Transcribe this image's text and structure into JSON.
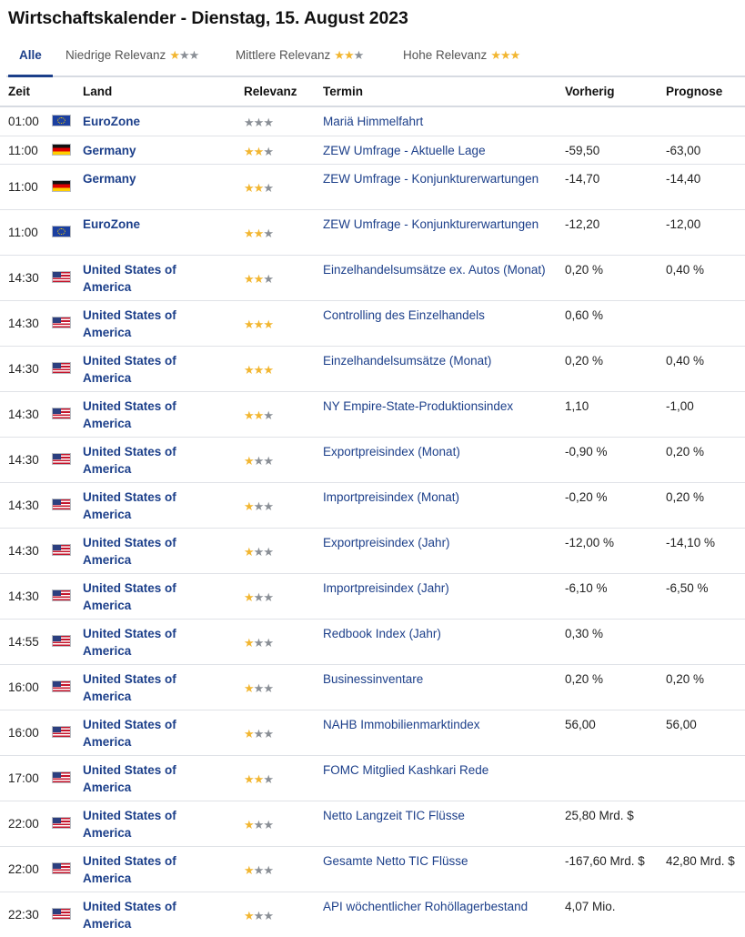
{
  "page": {
    "title": "Wirtschaftskalender - Dienstag, 15. August 2023"
  },
  "tabs": [
    {
      "label": "Alle",
      "active": true
    },
    {
      "label": "Niedrige Relevanz",
      "stars": 1
    },
    {
      "label": "Mittlere Relevanz",
      "stars": 2
    },
    {
      "label": "Hohe Relevanz",
      "stars": 3
    }
  ],
  "columns": {
    "time": "Zeit",
    "country": "Land",
    "relevance": "Relevanz",
    "event": "Termin",
    "previous": "Vorherig",
    "forecast": "Prognose"
  },
  "colors": {
    "accent": "#1c3f8a",
    "star_active": "#f2b631",
    "star_inactive": "#8a8f96"
  },
  "rows": [
    {
      "time": "01:00",
      "flag": "eu-flag-icon",
      "country": "EuroZone",
      "relevance": 0,
      "event": "Mariä Himmelfahrt",
      "previous": "",
      "forecast": ""
    },
    {
      "time": "11:00",
      "flag": "de-flag-icon",
      "country": "Germany",
      "relevance": 2,
      "event": "ZEW Umfrage - Aktuelle Lage",
      "previous": "-59,50",
      "forecast": "-63,00"
    },
    {
      "time": "11:00",
      "flag": "de-flag-icon",
      "country": "Germany",
      "relevance": 2,
      "event": "ZEW Umfrage - Konjunkturerwartungen",
      "previous": "-14,70",
      "forecast": "-14,40"
    },
    {
      "time": "11:00",
      "flag": "eu-flag-icon",
      "country": "EuroZone",
      "relevance": 2,
      "event": "ZEW Umfrage - Konjunkturerwartungen",
      "previous": "-12,20",
      "forecast": "-12,00"
    },
    {
      "time": "14:30",
      "flag": "us-flag-icon",
      "country": "United States of America",
      "relevance": 2,
      "event": "Einzelhandelsumsätze ex. Autos (Monat)",
      "previous": "0,20 %",
      "forecast": "0,40 %"
    },
    {
      "time": "14:30",
      "flag": "us-flag-icon",
      "country": "United States of America",
      "relevance": 3,
      "event": "Controlling des Einzelhandels",
      "previous": "0,60 %",
      "forecast": ""
    },
    {
      "time": "14:30",
      "flag": "us-flag-icon",
      "country": "United States of America",
      "relevance": 3,
      "event": "Einzelhandelsumsätze (Monat)",
      "previous": "0,20 %",
      "forecast": "0,40 %"
    },
    {
      "time": "14:30",
      "flag": "us-flag-icon",
      "country": "United States of America",
      "relevance": 2,
      "event": "NY Empire-State-Produktionsindex",
      "previous": "1,10",
      "forecast": "-1,00"
    },
    {
      "time": "14:30",
      "flag": "us-flag-icon",
      "country": "United States of America",
      "relevance": 1,
      "event": "Exportpreisindex (Monat)",
      "previous": "-0,90 %",
      "forecast": "0,20 %"
    },
    {
      "time": "14:30",
      "flag": "us-flag-icon",
      "country": "United States of America",
      "relevance": 1,
      "event": "Importpreisindex (Monat)",
      "previous": "-0,20 %",
      "forecast": "0,20 %"
    },
    {
      "time": "14:30",
      "flag": "us-flag-icon",
      "country": "United States of America",
      "relevance": 1,
      "event": "Exportpreisindex (Jahr)",
      "previous": "-12,00 %",
      "forecast": "-14,10 %"
    },
    {
      "time": "14:30",
      "flag": "us-flag-icon",
      "country": "United States of America",
      "relevance": 1,
      "event": "Importpreisindex (Jahr)",
      "previous": "-6,10 %",
      "forecast": "-6,50 %"
    },
    {
      "time": "14:55",
      "flag": "us-flag-icon",
      "country": "United States of America",
      "relevance": 1,
      "event": "Redbook Index (Jahr)",
      "previous": "0,30 %",
      "forecast": ""
    },
    {
      "time": "16:00",
      "flag": "us-flag-icon",
      "country": "United States of America",
      "relevance": 1,
      "event": "Businessinventare",
      "previous": "0,20 %",
      "forecast": "0,20 %"
    },
    {
      "time": "16:00",
      "flag": "us-flag-icon",
      "country": "United States of America",
      "relevance": 1,
      "event": "NAHB Immobilienmarktindex",
      "previous": "56,00",
      "forecast": "56,00"
    },
    {
      "time": "17:00",
      "flag": "us-flag-icon",
      "country": "United States of America",
      "relevance": 2,
      "event": "FOMC Mitglied Kashkari Rede",
      "previous": "",
      "forecast": ""
    },
    {
      "time": "22:00",
      "flag": "us-flag-icon",
      "country": "United States of America",
      "relevance": 1,
      "event": "Netto Langzeit TIC Flüsse",
      "previous": "25,80 Mrd. $",
      "forecast": ""
    },
    {
      "time": "22:00",
      "flag": "us-flag-icon",
      "country": "United States of America",
      "relevance": 1,
      "event": "Gesamte Netto TIC Flüsse",
      "previous": "-167,60 Mrd. $",
      "forecast": "42,80 Mrd. $"
    },
    {
      "time": "22:30",
      "flag": "us-flag-icon",
      "country": "United States of America",
      "relevance": 1,
      "event": "API wöchentlicher Rohöllagerbestand",
      "previous": "4,07 Mio.",
      "forecast": ""
    }
  ]
}
